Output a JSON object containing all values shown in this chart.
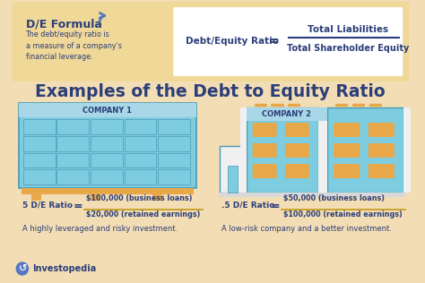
{
  "bg_color": "#f2ddb4",
  "formula_box_color": "#f0d898",
  "white_box_color": "#ffffff",
  "title": "Examples of the Debt to Equity Ratio",
  "title_color": "#2c3e7a",
  "title_fontsize": 13.5,
  "formula_label": "D/E Formula",
  "formula_label_color": "#2c3e7a",
  "formula_desc": "The debt/equity ratio is\na measure of a company's\nfinancial leverage.",
  "formula_desc_color": "#2c3e7a",
  "formula_lhs": "Debt/Equity Ratio",
  "formula_eq": "=",
  "formula_numerator": "Total Liabilities",
  "formula_denominator": "Total Shareholder Equity",
  "formula_text_color": "#2c3e7a",
  "company1_label": "COMPANY 1",
  "company2_label": "COMPANY 2",
  "company_label_color": "#2c3e7a",
  "company_label_bg": "#a8d8e8",
  "ratio1_lhs": "5 D/E Ratio",
  "ratio1_eq": "=",
  "ratio1_num": "$100,000 (business loans)",
  "ratio1_den": "$20,000 (retained earnings)",
  "ratio1_desc": "A highly leveraged and risky investment.",
  "ratio2_lhs": ".5 D/E Ratio",
  "ratio2_eq": "=",
  "ratio2_num": "$50,000 (business loans)",
  "ratio2_den": "$100,000 (retained earnings)",
  "ratio2_desc": "A low-risk company and a better investment.",
  "ratio_text_color": "#2c3e7a",
  "ratio_desc_color": "#2c3e7a",
  "teal_color": "#7dcce0",
  "teal_dark": "#5ab0c8",
  "teal_border": "#4a9ab5",
  "orange_color": "#e8a84a",
  "white_bldg": "#f0f0f0",
  "gray_bldg": "#d8d8d8",
  "investopedia_color": "#2c3e7a",
  "arrow_color": "#5578c0",
  "ratio_color": "#c8a020",
  "line_color": "#c8a020"
}
